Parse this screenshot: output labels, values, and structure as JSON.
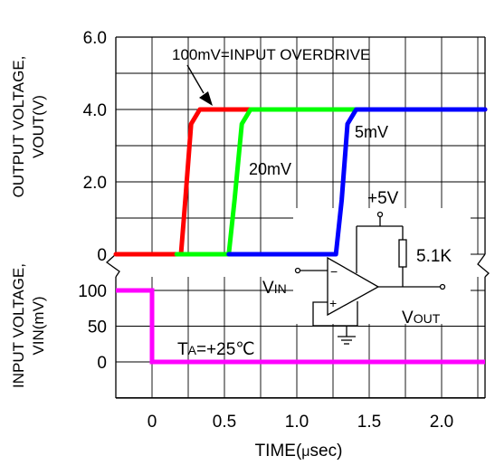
{
  "colors": {
    "overdrive_100mv": "#ff0000",
    "overdrive_20mv": "#00ff00",
    "overdrive_5mv": "#0000ff",
    "input": "#ff00ff",
    "grid": "#000000"
  },
  "chart_data": [
    {
      "type": "line",
      "panel": "output",
      "ylabel_lines": [
        "OUTPUT VOLTAGE,",
        "VOUT(V)"
      ],
      "y_ticks": [
        {
          "value": 0,
          "label": "0"
        },
        {
          "value": 2,
          "label": "2.0"
        },
        {
          "value": 4,
          "label": "4.0"
        },
        {
          "value": 6,
          "label": "6.0"
        }
      ],
      "ylim": [
        0,
        6
      ],
      "xlim": [
        -0.25,
        2.3
      ],
      "grid": true,
      "series": [
        {
          "name": "100mV",
          "color": "#ff0000",
          "x": [
            -0.25,
            0.2,
            0.23,
            0.27,
            0.33,
            2.3
          ],
          "y": [
            0,
            0,
            1.5,
            3.6,
            4.0,
            4.0
          ]
        },
        {
          "name": "20mV",
          "color": "#00ff00",
          "x": [
            0.17,
            0.53,
            0.57,
            0.62,
            0.68,
            1.5
          ],
          "y": [
            0,
            0,
            1.5,
            3.6,
            4.0,
            4.0
          ]
        },
        {
          "name": "5mV",
          "color": "#0000ff",
          "x": [
            0.53,
            1.27,
            1.31,
            1.35,
            1.41,
            2.3
          ],
          "y": [
            0,
            0,
            1.5,
            3.6,
            4.0,
            4.0
          ]
        }
      ],
      "annotations": [
        {
          "text": "100mV=INPUT OVERDRIVE",
          "x": 0.1,
          "y": 5.5,
          "arrow_to": [
            0.3,
            4.05
          ]
        },
        {
          "text": "20mV",
          "x": 0.63,
          "y": 2.4
        },
        {
          "text": "5mV",
          "x": 1.33,
          "y": 3.2
        }
      ]
    },
    {
      "type": "line",
      "panel": "input",
      "ylabel_lines": [
        "INPUT VOLTAGE,",
        "VIN(mV)"
      ],
      "y_ticks": [
        {
          "value": 0,
          "label": "0"
        },
        {
          "value": 50,
          "label": "50"
        },
        {
          "value": 100,
          "label": "100"
        }
      ],
      "ylim": [
        -50,
        100
      ],
      "xlim": [
        -0.25,
        2.3
      ],
      "grid": true,
      "series": [
        {
          "color": "#ff00ff",
          "x": [
            -0.25,
            0,
            0,
            2.3
          ],
          "y": [
            100,
            100,
            0,
            0
          ]
        }
      ],
      "x_ticks": [
        {
          "value": 0,
          "label": "0"
        },
        {
          "value": 0.5,
          "label": "0.5"
        },
        {
          "value": 1.0,
          "label": "1.0"
        },
        {
          "value": 1.5,
          "label": "1.5"
        },
        {
          "value": 2.0,
          "label": "2.0"
        }
      ],
      "xlabel_parts": [
        "TIME(",
        "μ",
        "sec)"
      ],
      "annotations": [
        {
          "text_main": "T",
          "text_sub": "A",
          "text_rest": "=+25",
          "text_unit": "℃"
        }
      ]
    }
  ],
  "circuit": {
    "supply": "+5V",
    "resistor": "5.1K",
    "input_main": "V",
    "input_sub": "IN",
    "output_main": "V",
    "output_sub": "OUT",
    "minus": "−",
    "plus": "+"
  }
}
